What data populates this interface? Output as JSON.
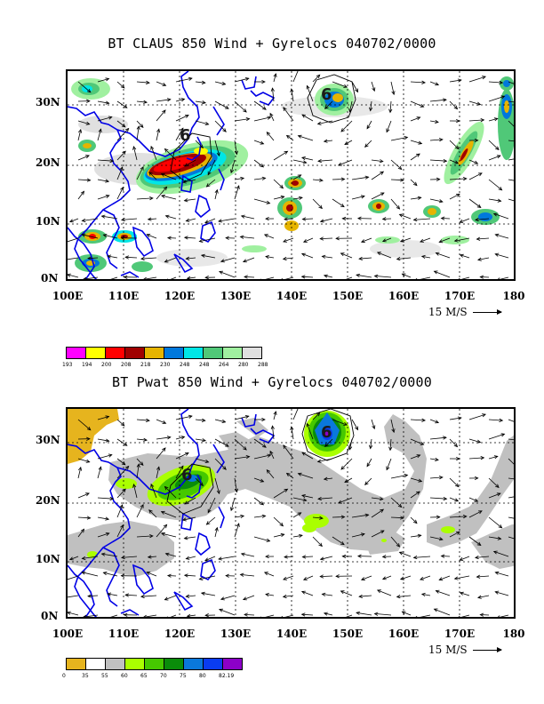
{
  "panel1": {
    "title": "BT CLAUS 850 Wind + Gyrelocs 040702/0000",
    "lat_labels": [
      "30N",
      "20N",
      "10N",
      "0N"
    ],
    "lon_labels": [
      "100E",
      "110E",
      "120E",
      "130E",
      "140E",
      "150E",
      "160E",
      "170E",
      "180"
    ],
    "scale_label": "15 M/S",
    "legend": {
      "colors": [
        "#ff00ff",
        "#ffff00",
        "#ff0000",
        "#a00000",
        "#e6b400",
        "#0078dc",
        "#00e6e6",
        "#50c878",
        "#a0f0a0",
        "#e0e0e0"
      ],
      "labels": [
        "193",
        "194",
        "200",
        "208",
        "218",
        "230",
        "248",
        "248",
        "264",
        "280",
        "288"
      ]
    },
    "storm_symbols": [
      "6",
      "6"
    ]
  },
  "panel2": {
    "title": "BT Pwat 850 Wind + Gyrelocs 040702/0000",
    "lat_labels": [
      "30N",
      "20N",
      "10N",
      "0N"
    ],
    "lon_labels": [
      "100E",
      "110E",
      "120E",
      "130E",
      "140E",
      "150E",
      "160E",
      "170E",
      "180"
    ],
    "scale_label": "15 M/S",
    "legend": {
      "colors": [
        "#e6b41e",
        "#ffffff",
        "#c0c0c0",
        "#aaff00",
        "#46c800",
        "#0a8c0a",
        "#0a78dc",
        "#0a3cf0",
        "#8c00c8"
      ],
      "labels": [
        "0",
        "35",
        "55",
        "60",
        "65",
        "70",
        "75",
        "80",
        "82.19"
      ]
    },
    "storm_symbols": [
      "6",
      "6"
    ]
  }
}
